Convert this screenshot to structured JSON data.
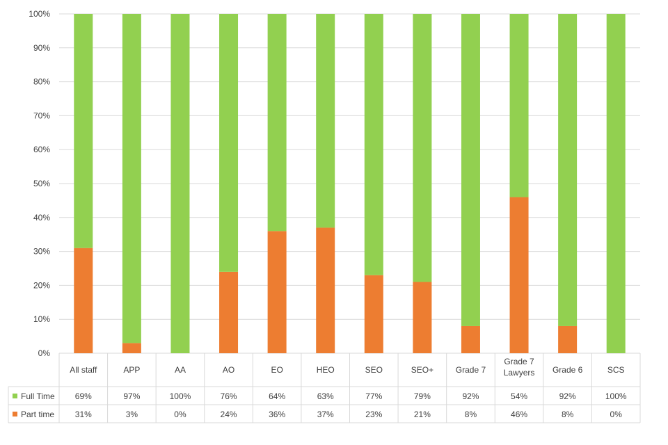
{
  "chart_data": {
    "type": "bar",
    "stacked": true,
    "percent_stacked": true,
    "categories": [
      "All staff",
      "APP",
      "AA",
      "AO",
      "EO",
      "HEO",
      "SEO",
      "SEO+",
      "Grade 7",
      "Grade 7 Lawyers",
      "Grade 6",
      "SCS"
    ],
    "series": [
      {
        "name": "Full Time",
        "color": "#92D050",
        "values": [
          69,
          97,
          100,
          76,
          64,
          63,
          77,
          79,
          92,
          54,
          92,
          100
        ],
        "labels": [
          "69%",
          "97%",
          "100%",
          "76%",
          "64%",
          "63%",
          "77%",
          "79%",
          "92%",
          "54%",
          "92%",
          "100%"
        ]
      },
      {
        "name": "Part time",
        "color": "#ED7D31",
        "values": [
          31,
          3,
          0,
          24,
          36,
          37,
          23,
          21,
          8,
          46,
          8,
          0
        ],
        "labels": [
          "31%",
          "3%",
          "0%",
          "24%",
          "36%",
          "37%",
          "23%",
          "21%",
          "8%",
          "46%",
          "8%",
          "0%"
        ]
      }
    ],
    "ylim": [
      0,
      100
    ],
    "yticks": [
      0,
      10,
      20,
      30,
      40,
      50,
      60,
      70,
      80,
      90,
      100
    ],
    "ytick_labels": [
      "0%",
      "10%",
      "20%",
      "30%",
      "40%",
      "50%",
      "60%",
      "70%",
      "80%",
      "90%",
      "100%"
    ],
    "grid": true,
    "legend": "data-table-left",
    "data_table": true
  }
}
